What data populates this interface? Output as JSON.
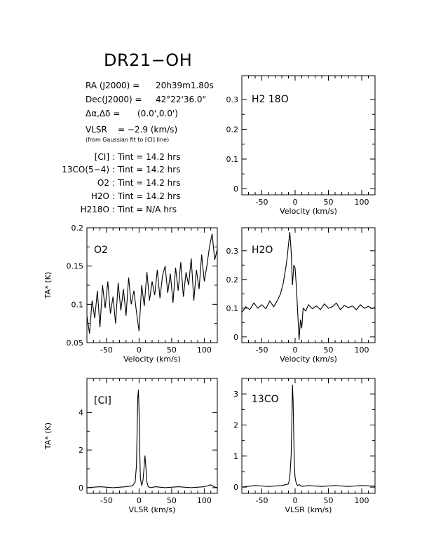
{
  "header": {
    "title": "DR21−OH",
    "ra_label": "RA (J2000) =",
    "ra_value": "20h39m1.80s",
    "dec_label": "Dec(J2000) =",
    "dec_value": "42°22'36.0\"",
    "offset_label": "Δα,Δδ =",
    "offset_value": "(0.0',0.0')",
    "vlsr_label": "VLSR",
    "vlsr_value": "= −2.9 (km/s)",
    "vlsr_note": "(from Gaussian fit to [CI] line)",
    "integrations": [
      {
        "line": "[CI]",
        "text": ": Tint = 14.2 hrs"
      },
      {
        "line": "13CO(5−4)",
        "text": ": Tint = 14.2 hrs"
      },
      {
        "line": "O2",
        "text": ": Tint = 14.2 hrs"
      },
      {
        "line": "H2O",
        "text": ": Tint = 14.2 hrs"
      },
      {
        "line": "H218O",
        "text": ": Tint = N/A hrs"
      }
    ]
  },
  "chart_data": [
    {
      "id": "h218o",
      "type": "line",
      "panel_label": "H2 18O",
      "xlabel": "Velocity (km/s)",
      "ylabel": "",
      "xlim": [
        -80,
        120
      ],
      "ylim": [
        -0.02,
        0.38
      ],
      "xticks": [
        -50,
        0,
        50,
        100
      ],
      "yticks": [
        0,
        0.1,
        0.2,
        0.3
      ],
      "ytick_labels": [
        "0",
        "0.1",
        "0.2",
        "0.3"
      ],
      "series": []
    },
    {
      "id": "o2",
      "type": "line",
      "panel_label": "O2",
      "xlabel": "Velocity (km/s)",
      "ylabel": "TA* (K)",
      "xlim": [
        -80,
        120
      ],
      "ylim": [
        0.05,
        0.2
      ],
      "xticks": [
        -50,
        0,
        50,
        100
      ],
      "yticks": [
        0.05,
        0.1,
        0.15,
        0.2
      ],
      "ytick_labels": [
        "0.05",
        "0.1",
        "0.15",
        "0.2"
      ],
      "series": [
        {
          "x": [
            -80,
            -76,
            -72,
            -68,
            -64,
            -60,
            -56,
            -52,
            -48,
            -44,
            -40,
            -36,
            -32,
            -28,
            -24,
            -20,
            -16,
            -12,
            -8,
            -4,
            0,
            4,
            8,
            12,
            16,
            20,
            24,
            28,
            32,
            36,
            40,
            44,
            48,
            52,
            56,
            60,
            64,
            68,
            72,
            76,
            80,
            84,
            88,
            92,
            96,
            100,
            104,
            108,
            112,
            116,
            120
          ],
          "y": [
            0.085,
            0.062,
            0.105,
            0.082,
            0.118,
            0.07,
            0.125,
            0.095,
            0.13,
            0.088,
            0.11,
            0.075,
            0.128,
            0.092,
            0.12,
            0.085,
            0.135,
            0.1,
            0.118,
            0.09,
            0.065,
            0.125,
            0.098,
            0.142,
            0.105,
            0.13,
            0.112,
            0.145,
            0.108,
            0.138,
            0.15,
            0.115,
            0.14,
            0.102,
            0.148,
            0.118,
            0.155,
            0.11,
            0.142,
            0.125,
            0.16,
            0.105,
            0.145,
            0.12,
            0.165,
            0.13,
            0.15,
            0.175,
            0.192,
            0.158,
            0.172
          ]
        }
      ]
    },
    {
      "id": "h2o",
      "type": "line",
      "panel_label": "H2O",
      "xlabel": "Velocity (km/s)",
      "ylabel": "",
      "xlim": [
        -80,
        120
      ],
      "ylim": [
        -0.02,
        0.38
      ],
      "xticks": [
        -50,
        0,
        50,
        100
      ],
      "yticks": [
        0,
        0.1,
        0.2,
        0.3
      ],
      "ytick_labels": [
        "0",
        "0.1",
        "0.2",
        "0.3"
      ],
      "series": [
        {
          "x": [
            -80,
            -74,
            -68,
            -62,
            -56,
            -50,
            -44,
            -38,
            -32,
            -26,
            -22,
            -18,
            -14,
            -12,
            -10,
            -8,
            -6,
            -4,
            -2,
            0,
            2,
            4,
            6,
            8,
            10,
            12,
            16,
            20,
            26,
            32,
            38,
            44,
            50,
            56,
            62,
            68,
            74,
            80,
            86,
            92,
            98,
            104,
            110,
            116,
            120
          ],
          "y": [
            0.085,
            0.105,
            0.095,
            0.118,
            0.1,
            0.112,
            0.098,
            0.125,
            0.105,
            0.13,
            0.15,
            0.185,
            0.24,
            0.275,
            0.32,
            0.365,
            0.3,
            0.18,
            0.25,
            0.24,
            0.17,
            0.08,
            -0.01,
            0.06,
            0.03,
            0.1,
            0.09,
            0.112,
            0.098,
            0.108,
            0.095,
            0.115,
            0.1,
            0.105,
            0.118,
            0.095,
            0.11,
            0.102,
            0.108,
            0.095,
            0.112,
            0.1,
            0.106,
            0.098,
            0.104
          ]
        }
      ]
    },
    {
      "id": "ci",
      "type": "line",
      "panel_label": "[CI]",
      "xlabel": "VLSR (km/s)",
      "ylabel": "TA* (K)",
      "xlim": [
        -80,
        120
      ],
      "ylim": [
        -0.3,
        5.8
      ],
      "xticks": [
        -50,
        0,
        50,
        100
      ],
      "yticks": [
        0,
        2,
        4
      ],
      "ytick_labels": [
        "0",
        "2",
        "4"
      ],
      "series": [
        {
          "x": [
            -80,
            -60,
            -40,
            -20,
            -10,
            -6,
            -4,
            -3,
            -2,
            -1,
            0,
            1,
            2,
            4,
            6,
            8,
            9,
            10,
            12,
            14,
            18,
            25,
            40,
            60,
            80,
            100,
            110,
            115,
            120
          ],
          "y": [
            0.0,
            0.05,
            0.0,
            0.05,
            0.1,
            0.3,
            1.2,
            3.0,
            4.8,
            5.2,
            4.0,
            2.0,
            0.5,
            0.1,
            0.4,
            1.2,
            1.7,
            1.3,
            0.3,
            0.05,
            0.0,
            0.05,
            0.0,
            0.05,
            0.0,
            0.05,
            0.15,
            0.05,
            0.0
          ]
        }
      ]
    },
    {
      "id": "13co",
      "type": "line",
      "panel_label": "13CO",
      "xlabel": "VLSR (km/s)",
      "ylabel": "",
      "xlim": [
        -80,
        120
      ],
      "ylim": [
        -0.2,
        3.5
      ],
      "xticks": [
        -50,
        0,
        50,
        100
      ],
      "yticks": [
        0,
        1,
        2,
        3
      ],
      "ytick_labels": [
        "0",
        "1",
        "2",
        "3"
      ],
      "series": [
        {
          "x": [
            -80,
            -60,
            -40,
            -20,
            -10,
            -8,
            -6,
            -5,
            -4,
            -3,
            -2,
            -1,
            0,
            1,
            2,
            4,
            6,
            10,
            20,
            40,
            60,
            80,
            100,
            120
          ],
          "y": [
            0.0,
            0.05,
            0.02,
            0.05,
            0.1,
            0.3,
            1.0,
            2.0,
            3.3,
            2.8,
            1.6,
            0.6,
            0.3,
            0.2,
            0.1,
            0.05,
            0.08,
            0.02,
            0.05,
            0.02,
            0.05,
            0.02,
            0.05,
            0.03
          ]
        }
      ]
    }
  ]
}
